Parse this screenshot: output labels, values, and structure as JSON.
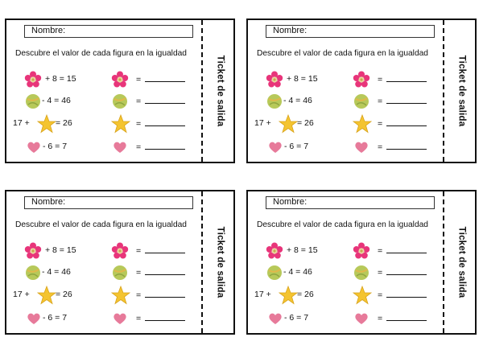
{
  "tickets": [
    {
      "id": 1
    },
    {
      "id": 2
    },
    {
      "id": 3
    },
    {
      "id": 4
    }
  ],
  "ticket": {
    "name_label": "Nombre:",
    "instruction": "Descubre el valor de cada figura en la igualdad",
    "side_label": "Ticket de salida",
    "rows": [
      {
        "figure": "flower-icon",
        "prefix": "",
        "suffix": "+ 8 = 15",
        "answer_label": "="
      },
      {
        "figure": "ball-icon",
        "prefix": "",
        "suffix": "- 4 = 46",
        "answer_label": "="
      },
      {
        "figure": "star-icon",
        "prefix": "17 +",
        "suffix": "= 26",
        "answer_label": "="
      },
      {
        "figure": "heart-icon",
        "prefix": "",
        "suffix": "-  6   = 7",
        "answer_label": "="
      }
    ]
  },
  "colors": {
    "flower": "#e8357a",
    "flower_center": "#e8d7a0",
    "ball": "#b7c95a",
    "star": "#f4c430",
    "heart": "#e77a9a"
  }
}
